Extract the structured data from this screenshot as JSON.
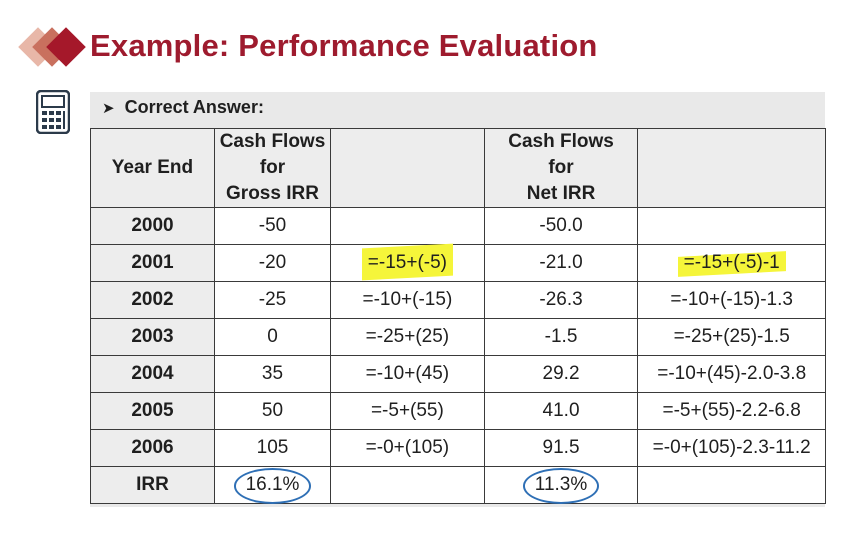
{
  "title": "Example: Performance Evaluation",
  "answer_label": "Correct Answer:",
  "headers": {
    "year": "Year End",
    "gross": [
      "Cash Flows",
      "for",
      "Gross IRR"
    ],
    "gross_formula": "",
    "net": [
      "Cash Flows",
      "for",
      "Net IRR"
    ],
    "net_formula": ""
  },
  "rows": [
    {
      "year": "2000",
      "gross": "-50",
      "gross_formula": "",
      "net": "-50.0",
      "net_formula": ""
    },
    {
      "year": "2001",
      "gross": "-20",
      "gross_formula": "=-15+(-5)",
      "net": "-21.0",
      "net_formula": "=-15+(-5)-1"
    },
    {
      "year": "2002",
      "gross": "-25",
      "gross_formula": "=-10+(-15)",
      "net": "-26.3",
      "net_formula": "=-10+(-15)-1.3"
    },
    {
      "year": "2003",
      "gross": "0",
      "gross_formula": "=-25+(25)",
      "net": "-1.5",
      "net_formula": "=-25+(25)-1.5"
    },
    {
      "year": "2004",
      "gross": "35",
      "gross_formula": "=-10+(45)",
      "net": "29.2",
      "net_formula": "=-10+(45)-2.0-3.8"
    },
    {
      "year": "2005",
      "gross": "50",
      "gross_formula": "=-5+(55)",
      "net": "41.0",
      "net_formula": "=-5+(55)-2.2-6.8"
    },
    {
      "year": "2006",
      "gross": "105",
      "gross_formula": "=-0+(105)",
      "net": "91.5",
      "net_formula": "=-0+(105)-2.3-11.2"
    }
  ],
  "irr_row": {
    "label": "IRR",
    "gross": "16.1%",
    "net": "11.3%"
  },
  "colors": {
    "title": "#9e1b2e",
    "highlight": "#f5f53a",
    "circle": "#2e6fb5"
  },
  "icons": {
    "bullet": "triangle-bullet-icon",
    "calculator": "calculator-icon"
  }
}
